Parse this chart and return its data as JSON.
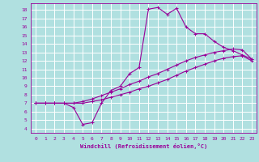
{
  "xlabel": "Windchill (Refroidissement éolien,°C)",
  "bg_color": "#b0e0e0",
  "grid_color": "#ffffff",
  "line_color": "#990099",
  "xlim": [
    -0.5,
    23.5
  ],
  "ylim": [
    3.5,
    18.8
  ],
  "xticks": [
    0,
    1,
    2,
    3,
    4,
    5,
    6,
    7,
    8,
    9,
    10,
    11,
    12,
    13,
    14,
    15,
    16,
    17,
    18,
    19,
    20,
    21,
    22,
    23
  ],
  "yticks": [
    4,
    5,
    6,
    7,
    8,
    9,
    10,
    11,
    12,
    13,
    14,
    15,
    16,
    17,
    18
  ],
  "series1_x": [
    0,
    1,
    2,
    3,
    4,
    5,
    6,
    7,
    8,
    9,
    10,
    11,
    12,
    13,
    14,
    15,
    16,
    17,
    18,
    19,
    20,
    21,
    22,
    23
  ],
  "series1_y": [
    7,
    7,
    7,
    7,
    6.5,
    4.5,
    4.7,
    7.0,
    8.5,
    9.0,
    10.5,
    11.2,
    18.1,
    18.3,
    17.5,
    18.2,
    16.0,
    15.2,
    15.2,
    14.3,
    13.6,
    13.2,
    12.7,
    12.2
  ],
  "series2_x": [
    0,
    1,
    2,
    3,
    4,
    5,
    6,
    7,
    8,
    9,
    10,
    11,
    12,
    13,
    14,
    15,
    16,
    17,
    18,
    19,
    20,
    21,
    22,
    23
  ],
  "series2_y": [
    7,
    7,
    7,
    7,
    7,
    7,
    7.2,
    7.4,
    7.7,
    8.0,
    8.3,
    8.7,
    9.0,
    9.4,
    9.8,
    10.3,
    10.8,
    11.2,
    11.6,
    12.0,
    12.3,
    12.5,
    12.6,
    12.0
  ],
  "series3_x": [
    0,
    1,
    2,
    3,
    4,
    5,
    6,
    7,
    8,
    9,
    10,
    11,
    12,
    13,
    14,
    15,
    16,
    17,
    18,
    19,
    20,
    21,
    22,
    23
  ],
  "series3_y": [
    7,
    7,
    7,
    7,
    7,
    7.2,
    7.5,
    7.9,
    8.3,
    8.7,
    9.2,
    9.6,
    10.1,
    10.5,
    11.0,
    11.5,
    12.0,
    12.4,
    12.7,
    13.0,
    13.2,
    13.4,
    13.3,
    12.2
  ]
}
